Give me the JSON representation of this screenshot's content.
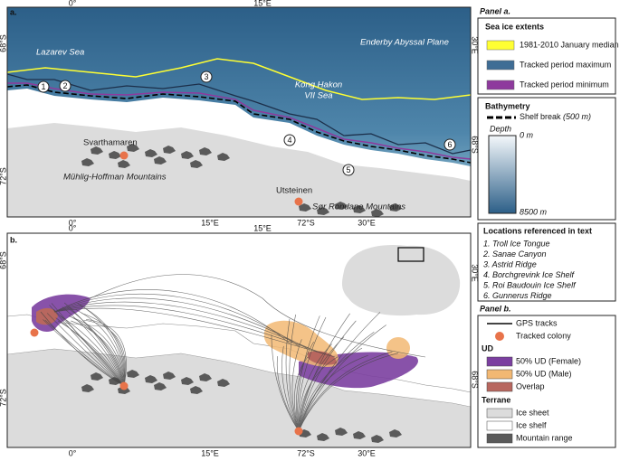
{
  "panel_a": {
    "label": "a.",
    "top_ticks": [
      "0°",
      "15°E"
    ],
    "left_ticks": [
      "68°S",
      "72°S"
    ],
    "right_ticks": [
      "30°E",
      "68°S"
    ],
    "bottom_ticks": [
      "0°",
      "15°E",
      "72°S",
      "30°E"
    ],
    "places": [
      "Lazarev Sea",
      "Enderby Abyssal Plane",
      "Kong Hakon",
      "VII Sea",
      "Svarthamaren",
      "Mühlig-Hoffman Mountains",
      "Utsteinen",
      "Sør Rondane Mountains"
    ],
    "location_markers": [
      "1",
      "2",
      "3",
      "4",
      "5",
      "6"
    ]
  },
  "panel_b": {
    "label": "b.",
    "top_ticks": [
      "0°",
      "15°E"
    ],
    "left_ticks": [
      "68°S",
      "72°S"
    ],
    "right_ticks": [
      "30°E",
      "68°S"
    ],
    "bottom_ticks": [
      "0°",
      "15°E",
      "72°S",
      "30°E"
    ]
  },
  "legend": {
    "panel_a_title": "Panel a.",
    "sea_ice": {
      "title": "Sea ice extents",
      "items": [
        {
          "name": "1981-2010 January median",
          "color": "#ffff33"
        },
        {
          "name": "Tracked period maximum",
          "color": "#3f6d95"
        },
        {
          "name": "Tracked period minimum",
          "color": "#8e3a9d"
        }
      ]
    },
    "bathymetry": {
      "title": "Bathymetry",
      "shelf_break": "Shelf break",
      "shelf_break_depth": "(500 m)",
      "depth_title": "Depth",
      "depth_min": "0 m",
      "depth_max": "8500 m"
    },
    "locations": {
      "title": "Locations referenced in text",
      "items": [
        "1. Troll Ice Tongue",
        "2. Sanae Canyon",
        "3. Astrid Ridge",
        "4. Borchgrevink Ice Shelf",
        "5. Roi Baudouin Ice Shelf",
        "6. Gunnerus Ridge"
      ]
    },
    "panel_b_title": "Panel b.",
    "tracks": {
      "name": "GPS tracks",
      "color": "#444444"
    },
    "colony": {
      "name": "Tracked colony",
      "color": "#e8734a"
    },
    "ud": {
      "title": "UD",
      "items": [
        {
          "name": "50% UD (Female)",
          "color": "#7b3fa0"
        },
        {
          "name": "50% UD (Male)",
          "color": "#f2b873"
        },
        {
          "name": "Overlap",
          "color": "#b8675f"
        }
      ]
    },
    "terrane": {
      "title": "Terrane",
      "items": [
        {
          "name": "Ice sheet",
          "color": "#dcdcdc"
        },
        {
          "name": "Ice shelf",
          "color": "#ffffff"
        },
        {
          "name": "Mountain range",
          "color": "#5a5a5a"
        }
      ]
    }
  }
}
